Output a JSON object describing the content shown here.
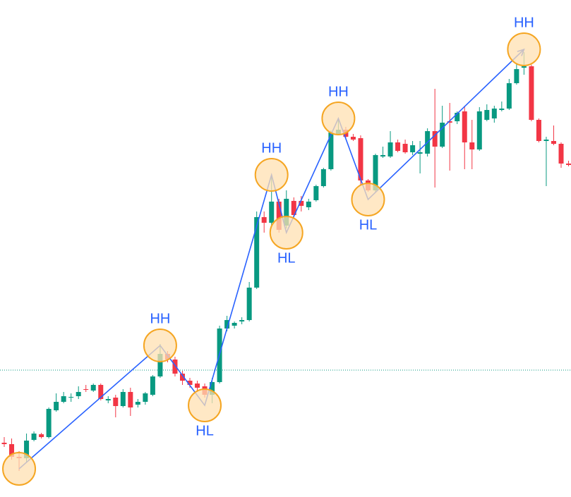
{
  "chart_data": {
    "type": "candlestick",
    "open": [
      77,
      75,
      57,
      55,
      81,
      89,
      85,
      123,
      135,
      141,
      143,
      153,
      151,
      159,
      137,
      141,
      129,
      149,
      131,
      135,
      145,
      171,
      203,
      195,
      175,
      165,
      161,
      157,
      145,
      163,
      239,
      243,
      249,
      251,
      297,
      397,
      389,
      419,
      385,
      420,
      420,
      411,
      421,
      441,
      465,
      515,
      521,
      511,
      509,
      449,
      435,
      483,
      483,
      503,
      501,
      489,
      487,
      487,
      519,
      497,
      533,
      533,
      547,
      503,
      493,
      535,
      537,
      549,
      551,
      587,
      609,
      611,
      535,
      505,
      505,
      501,
      473
    ],
    "high": [
      85,
      83,
      65,
      90,
      93,
      91,
      127,
      147,
      149,
      147,
      157,
      159,
      161,
      161,
      143,
      145,
      153,
      155,
      139,
      149,
      173,
      217,
      207,
      199,
      179,
      169,
      165,
      161,
      169,
      243,
      257,
      249,
      255,
      305,
      405,
      405,
      455,
      423,
      435,
      425,
      427,
      423,
      443,
      467,
      520,
      535,
      525,
      515,
      513,
      451,
      487,
      497,
      519,
      507,
      507,
      505,
      505,
      523,
      579,
      555,
      559,
      547,
      555,
      535,
      553,
      557,
      555,
      561,
      593,
      615,
      631,
      613,
      537,
      511,
      527,
      503,
      477
    ],
    "low": [
      71,
      53,
      37,
      50,
      79,
      83,
      83,
      121,
      133,
      135,
      139,
      149,
      149,
      137,
      133,
      113,
      127,
      115,
      127,
      131,
      143,
      169,
      191,
      171,
      159,
      155,
      149,
      141,
      133,
      161,
      235,
      239,
      245,
      249,
      295,
      375,
      385,
      375,
      381,
      395,
      405,
      407,
      419,
      439,
      463,
      513,
      507,
      505,
      443,
      433,
      433,
      481,
      481,
      489,
      487,
      485,
      459,
      483,
      439,
      495,
      463,
      529,
      465,
      465,
      491,
      533,
      531,
      547,
      549,
      585,
      599,
      533,
      503,
      441,
      499,
      467,
      469
    ],
    "close": [
      75,
      57,
      55,
      80,
      90,
      85,
      125,
      135,
      143,
      142,
      149,
      152,
      159,
      139,
      139,
      129,
      149,
      127,
      135,
      147,
      171,
      203,
      195,
      175,
      165,
      159,
      155,
      145,
      163,
      239,
      251,
      247,
      251,
      297,
      397,
      389,
      419,
      379,
      423,
      400,
      413,
      419,
      441,
      465,
      517,
      521,
      511,
      507,
      449,
      435,
      485,
      485,
      503,
      491,
      489,
      499,
      489,
      519,
      497,
      531,
      531,
      545,
      503,
      493,
      547,
      549,
      551,
      551,
      587,
      607,
      611,
      535,
      505,
      507,
      501,
      473,
      471
    ],
    "up_color": "#089981",
    "down_color": "#f23645",
    "ylim": [
      0,
      705
    ],
    "reference_line": {
      "value": 180,
      "color": "#089981"
    },
    "zigzag": {
      "color": "#2962ff",
      "circle_fill": "#ffe0b2",
      "circle_stroke": "#f5a623",
      "pivots": [
        {
          "index": 2,
          "value": 40
        },
        {
          "index": 21,
          "value": 215,
          "label": "HH"
        },
        {
          "index": 27,
          "value": 130,
          "label": "HL"
        },
        {
          "index": 36,
          "value": 457,
          "label": "HH"
        },
        {
          "index": 38,
          "value": 375,
          "label": "HL"
        },
        {
          "index": 45,
          "value": 537,
          "label": "HH"
        },
        {
          "index": 49,
          "value": 422,
          "label": "HL"
        },
        {
          "index": 70,
          "value": 635,
          "label": "HH"
        }
      ]
    }
  }
}
